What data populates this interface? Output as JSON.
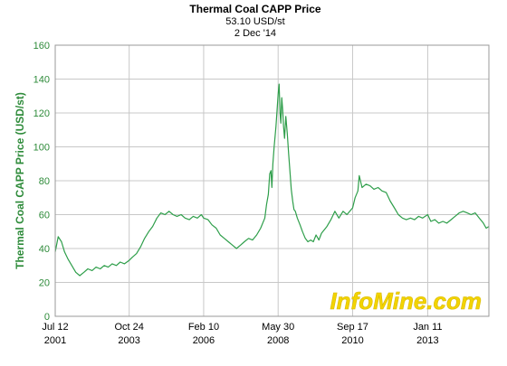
{
  "header": {
    "title": "Thermal Coal CAPP Price",
    "subtitle": "53.10 USD/st",
    "date": "2 Dec '14"
  },
  "watermark": "InfoMine.com",
  "colors": {
    "line": "#2e9e4a",
    "axis_text": "#2e8b3a",
    "grid": "#c8c8c8",
    "watermark_fill": "#f3d400",
    "watermark_stroke": "#ffffff"
  },
  "chart_data": {
    "type": "line",
    "title": "Thermal Coal CAPP Price",
    "subtitle": "53.10 USD/st",
    "date_label": "2 Dec '14",
    "xlabel": "",
    "ylabel": "Thermal Coal CAPP Price (USD/st)",
    "ylim": [
      0,
      160
    ],
    "xlim": [
      "2001-07-12",
      "2014-12-02"
    ],
    "yticks": [
      0,
      20,
      40,
      60,
      80,
      100,
      120,
      140,
      160
    ],
    "xticks": [
      {
        "date": "2001-07-12",
        "label1": "Jul 12",
        "label2": "2001"
      },
      {
        "date": "2003-10-24",
        "label1": "Oct 24",
        "label2": "2003"
      },
      {
        "date": "2006-02-10",
        "label1": "Feb 10",
        "label2": "2006"
      },
      {
        "date": "2008-05-30",
        "label1": "May 30",
        "label2": "2008"
      },
      {
        "date": "2010-09-17",
        "label1": "Sep 17",
        "label2": "2010"
      },
      {
        "date": "2013-01-11",
        "label1": "Jan 11",
        "label2": "2013"
      }
    ],
    "grid": true,
    "series": [
      {
        "points": [
          [
            "2001-07-12",
            38
          ],
          [
            "2001-08-15",
            47
          ],
          [
            "2001-09-20",
            44
          ],
          [
            "2001-10-25",
            38
          ],
          [
            "2001-12-01",
            34
          ],
          [
            "2002-01-15",
            30
          ],
          [
            "2002-03-01",
            26
          ],
          [
            "2002-04-15",
            24
          ],
          [
            "2002-06-01",
            26
          ],
          [
            "2002-07-15",
            28
          ],
          [
            "2002-09-01",
            27
          ],
          [
            "2002-10-15",
            29
          ],
          [
            "2002-12-01",
            28
          ],
          [
            "2003-01-15",
            30
          ],
          [
            "2003-03-01",
            29
          ],
          [
            "2003-04-15",
            31
          ],
          [
            "2003-06-01",
            30
          ],
          [
            "2003-07-15",
            32
          ],
          [
            "2003-09-01",
            31
          ],
          [
            "2003-10-24",
            33
          ],
          [
            "2003-12-01",
            35
          ],
          [
            "2004-01-15",
            37
          ],
          [
            "2004-03-01",
            41
          ],
          [
            "2004-04-15",
            46
          ],
          [
            "2004-06-01",
            50
          ],
          [
            "2004-07-15",
            53
          ],
          [
            "2004-09-01",
            58
          ],
          [
            "2004-10-15",
            61
          ],
          [
            "2004-12-01",
            60
          ],
          [
            "2005-01-15",
            62
          ],
          [
            "2005-03-01",
            60
          ],
          [
            "2005-04-15",
            59
          ],
          [
            "2005-06-01",
            60
          ],
          [
            "2005-07-15",
            58
          ],
          [
            "2005-09-01",
            57
          ],
          [
            "2005-10-15",
            59
          ],
          [
            "2005-12-01",
            58
          ],
          [
            "2006-01-15",
            60
          ],
          [
            "2006-02-10",
            58
          ],
          [
            "2006-04-01",
            57
          ],
          [
            "2006-05-15",
            54
          ],
          [
            "2006-07-01",
            52
          ],
          [
            "2006-08-15",
            48
          ],
          [
            "2006-10-01",
            46
          ],
          [
            "2006-11-15",
            44
          ],
          [
            "2007-01-01",
            42
          ],
          [
            "2007-02-15",
            40
          ],
          [
            "2007-04-01",
            42
          ],
          [
            "2007-05-15",
            44
          ],
          [
            "2007-07-01",
            46
          ],
          [
            "2007-08-15",
            45
          ],
          [
            "2007-10-01",
            48
          ],
          [
            "2007-11-15",
            52
          ],
          [
            "2008-01-01",
            58
          ],
          [
            "2008-01-20",
            66
          ],
          [
            "2008-02-10",
            72
          ],
          [
            "2008-02-25",
            84
          ],
          [
            "2008-03-10",
            86
          ],
          [
            "2008-03-20",
            76
          ],
          [
            "2008-04-01",
            90
          ],
          [
            "2008-04-15",
            100
          ],
          [
            "2008-04-25",
            106
          ],
          [
            "2008-05-05",
            112
          ],
          [
            "2008-05-20",
            123
          ],
          [
            "2008-05-30",
            131
          ],
          [
            "2008-06-10",
            137
          ],
          [
            "2008-06-20",
            120
          ],
          [
            "2008-06-30",
            114
          ],
          [
            "2008-07-10",
            129
          ],
          [
            "2008-07-20",
            122
          ],
          [
            "2008-07-30",
            112
          ],
          [
            "2008-08-10",
            105
          ],
          [
            "2008-08-25",
            118
          ],
          [
            "2008-09-10",
            108
          ],
          [
            "2008-09-25",
            96
          ],
          [
            "2008-10-10",
            86
          ],
          [
            "2008-10-25",
            75
          ],
          [
            "2008-11-10",
            68
          ],
          [
            "2008-11-25",
            63
          ],
          [
            "2008-12-10",
            62
          ],
          [
            "2009-01-01",
            58
          ],
          [
            "2009-02-01",
            54
          ],
          [
            "2009-03-01",
            50
          ],
          [
            "2009-04-01",
            46
          ],
          [
            "2009-05-01",
            44
          ],
          [
            "2009-06-01",
            45
          ],
          [
            "2009-07-01",
            44
          ],
          [
            "2009-08-01",
            48
          ],
          [
            "2009-09-01",
            45
          ],
          [
            "2009-10-01",
            49
          ],
          [
            "2009-11-01",
            51
          ],
          [
            "2009-12-01",
            53
          ],
          [
            "2010-01-15",
            57
          ],
          [
            "2010-03-01",
            62
          ],
          [
            "2010-04-15",
            58
          ],
          [
            "2010-06-01",
            62
          ],
          [
            "2010-07-15",
            60
          ],
          [
            "2010-09-17",
            64
          ],
          [
            "2010-10-15",
            70
          ],
          [
            "2010-11-15",
            74
          ],
          [
            "2010-12-01",
            83
          ],
          [
            "2011-01-01",
            76
          ],
          [
            "2011-02-15",
            78
          ],
          [
            "2011-04-01",
            77
          ],
          [
            "2011-05-15",
            75
          ],
          [
            "2011-07-01",
            76
          ],
          [
            "2011-08-15",
            74
          ],
          [
            "2011-10-01",
            73
          ],
          [
            "2011-11-15",
            68
          ],
          [
            "2012-01-01",
            64
          ],
          [
            "2012-02-15",
            60
          ],
          [
            "2012-04-01",
            58
          ],
          [
            "2012-05-15",
            57
          ],
          [
            "2012-07-01",
            58
          ],
          [
            "2012-08-15",
            57
          ],
          [
            "2012-10-01",
            59
          ],
          [
            "2012-11-15",
            58
          ],
          [
            "2013-01-11",
            60
          ],
          [
            "2013-02-15",
            56
          ],
          [
            "2013-04-01",
            57
          ],
          [
            "2013-05-15",
            55
          ],
          [
            "2013-07-01",
            56
          ],
          [
            "2013-08-15",
            55
          ],
          [
            "2013-10-01",
            57
          ],
          [
            "2013-11-15",
            59
          ],
          [
            "2014-01-01",
            61
          ],
          [
            "2014-02-15",
            62
          ],
          [
            "2014-04-01",
            61
          ],
          [
            "2014-05-15",
            60
          ],
          [
            "2014-07-01",
            61
          ],
          [
            "2014-08-15",
            58
          ],
          [
            "2014-10-01",
            55
          ],
          [
            "2014-11-01",
            52
          ],
          [
            "2014-12-02",
            53
          ]
        ]
      }
    ]
  }
}
